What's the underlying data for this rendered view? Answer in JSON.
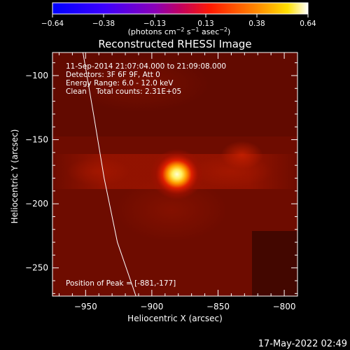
{
  "chart_data": {
    "type": "heatmap",
    "title": "Reconstructed RHESSI Image",
    "colorbar": {
      "min": -0.64,
      "max": 0.64,
      "tick_labels": [
        "−0.64",
        "−0.38",
        "−0.13",
        "0.13",
        "0.38",
        "0.64"
      ],
      "unit_label": "(photons cm",
      "unit_exp1": "−2",
      "unit_mid": " s",
      "unit_exp2": "−1",
      "unit_mid2": " asec",
      "unit_exp3": "−2",
      "unit_end": ")"
    },
    "xlabel": "Heliocentric X (arcsec)",
    "ylabel": "Heliocentric Y (arcsec)",
    "xlim": [
      -975,
      -790
    ],
    "ylim": [
      -272,
      -82
    ],
    "x_ticks": [
      -950,
      -900,
      -850,
      -800
    ],
    "x_tick_labels": [
      "−950",
      "−900",
      "−850",
      "−800"
    ],
    "y_ticks": [
      -100,
      -150,
      -200,
      -250
    ],
    "y_tick_labels": [
      "−100",
      "−150",
      "−200",
      "−250"
    ],
    "info_lines": [
      "11-Sep-2014 21:07:04.000 to 21:09:08.000",
      "Detectors: 3F 6F 9F, Att 0",
      "Energy Range: 6.0 - 12.0 keV",
      "Clean    Total counts: 2.31E+05"
    ],
    "peak_label": "Position of Peak = [-881,-177]",
    "peak_position": [
      -881,
      -177
    ],
    "secondary_source": [
      -832,
      -162
    ],
    "limb_curve": [
      [
        -952,
        -82
      ],
      [
        -944,
        -130
      ],
      [
        -936,
        -180
      ],
      [
        -926,
        -230
      ],
      [
        -912,
        -272
      ]
    ]
  },
  "footer": {
    "timestamp": "17-May-2022 02:49"
  }
}
